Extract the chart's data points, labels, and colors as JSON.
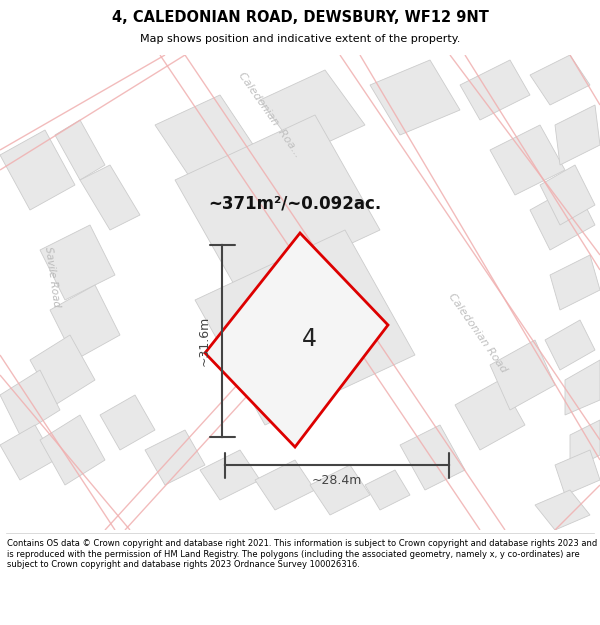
{
  "title": "4, CALEDONIAN ROAD, DEWSBURY, WF12 9NT",
  "subtitle": "Map shows position and indicative extent of the property.",
  "area_text": "~371m²/~0.092ac.",
  "dim_h": "~28.4m",
  "dim_v": "~31.6m",
  "property_label": "4",
  "copyright_text": "Contains OS data © Crown copyright and database right 2021. This information is subject to Crown copyright and database rights 2023 and is reproduced with the permission of HM Land Registry. The polygons (including the associated geometry, namely x, y co-ordinates) are subject to Crown copyright and database rights 2023 Ordnance Survey 100026316.",
  "bg_color": "#ffffff",
  "map_bg": "#ffffff",
  "building_color": "#e8e8e8",
  "building_edge": "#cccccc",
  "road_line_color": "#f0b0b0",
  "property_color": "#f5f5f5",
  "property_edge": "#dd0000",
  "dim_color": "#444444",
  "title_color": "#000000",
  "road_label_color": "#c0c0c0",
  "savile_road_color": "#bbbbbb"
}
